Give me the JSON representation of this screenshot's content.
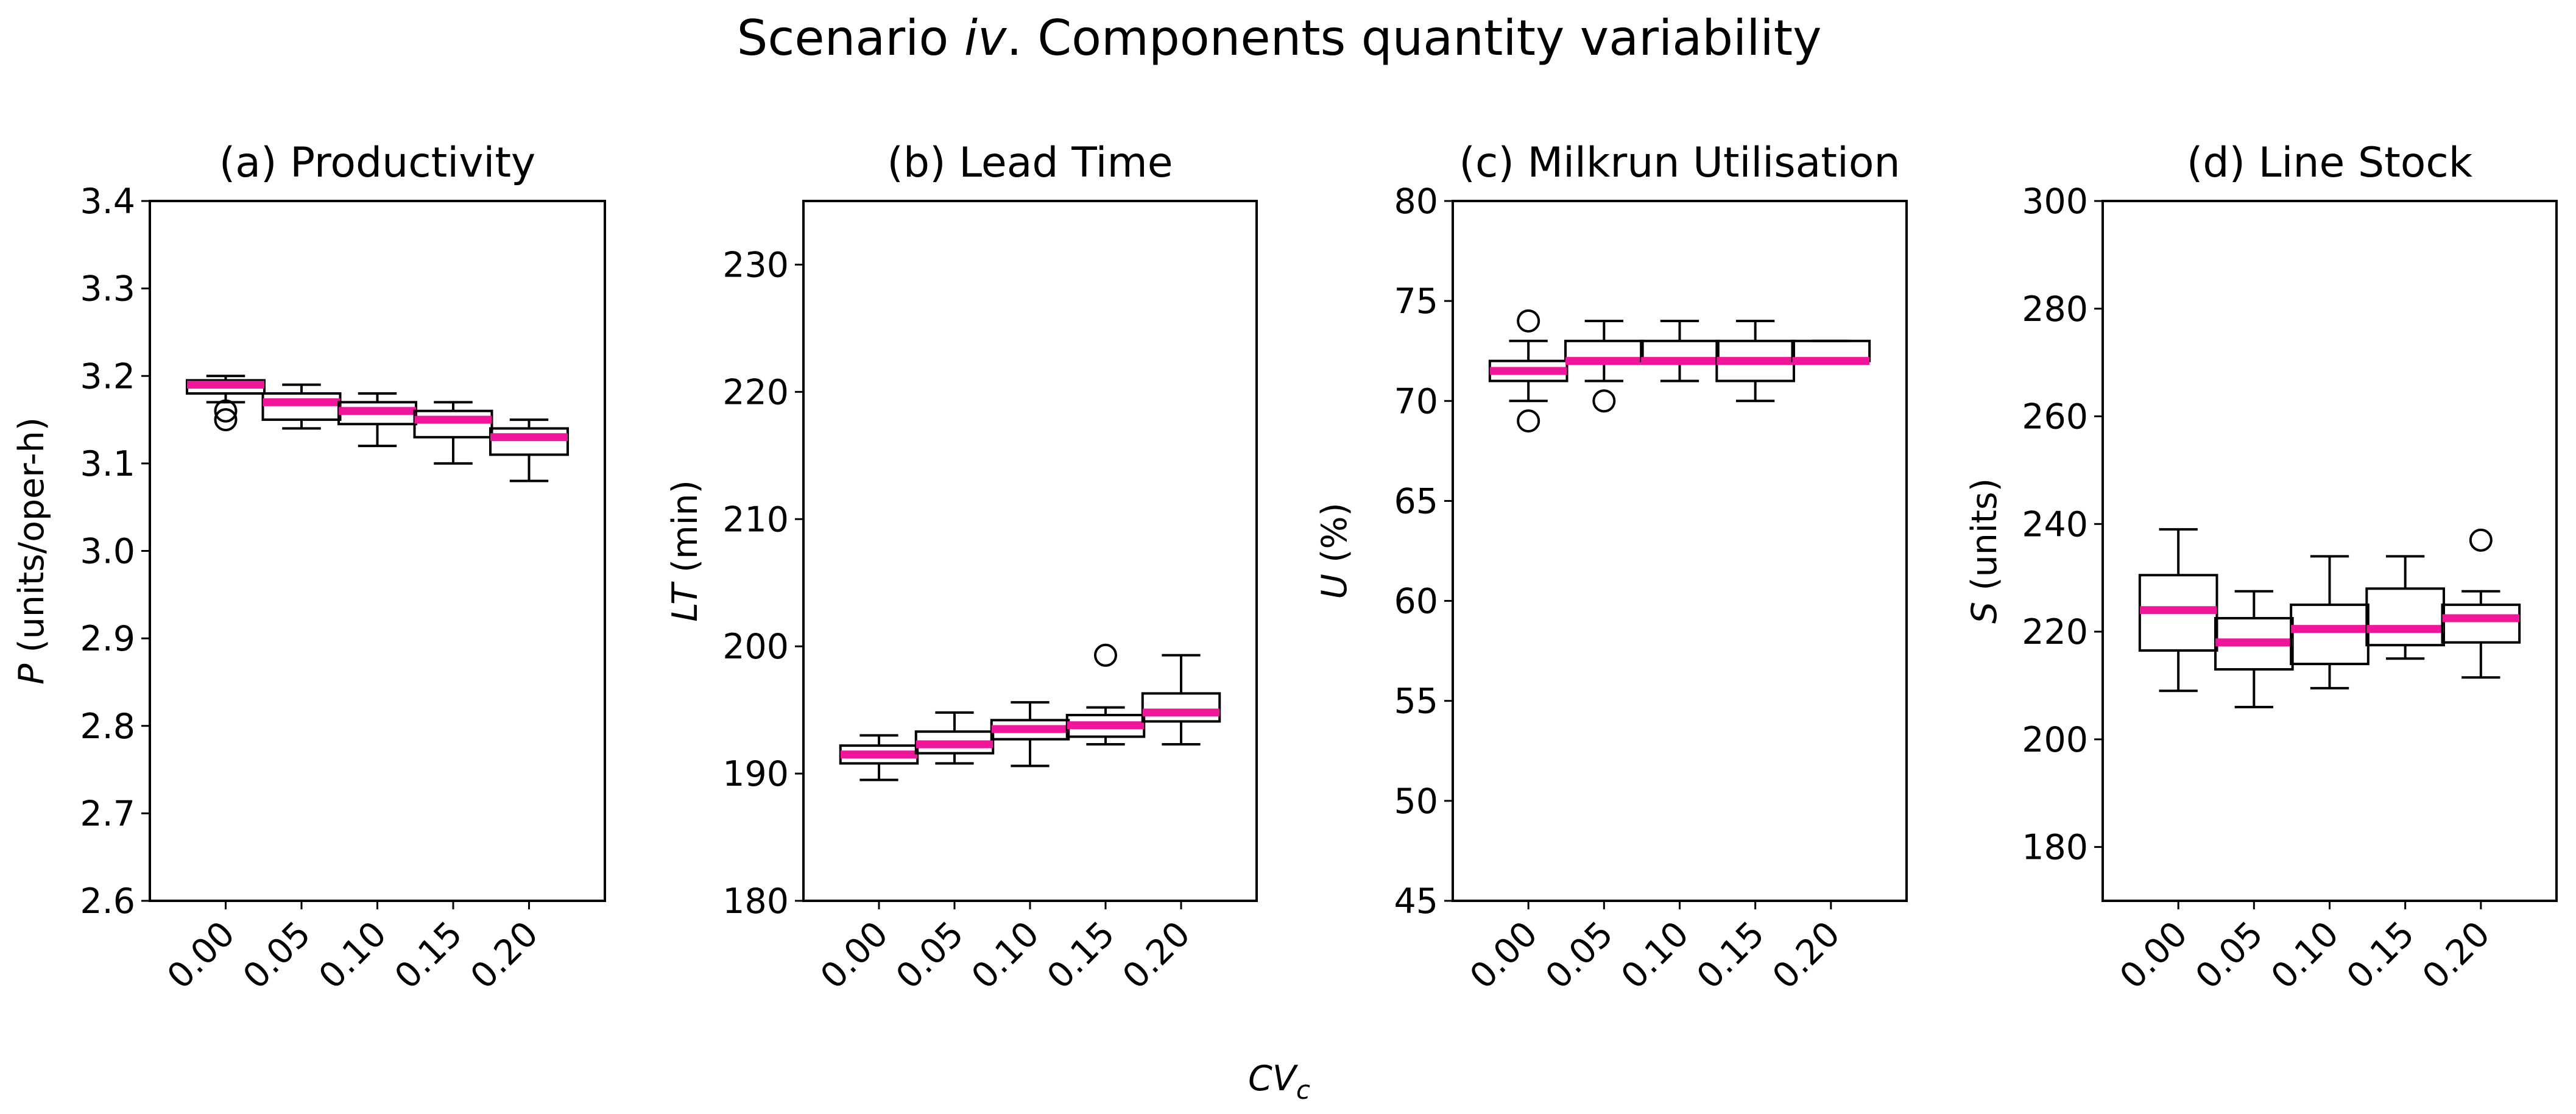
{
  "figure_title": {
    "prefix": "Scenario ",
    "italic": "iv",
    "suffix": ".  Components quantity variability"
  },
  "xlabel": {
    "main": "CV",
    "sub": "c"
  },
  "colors": {
    "median": "#f0169a",
    "box": "#000000",
    "background": "#ffffff"
  },
  "chart_data": [
    {
      "type": "boxplot",
      "title": "(a) Productivity",
      "ylabel": {
        "symbol": "P",
        "rest": " (units/oper-h)"
      },
      "categories": [
        "0.00",
        "0.05",
        "0.10",
        "0.15",
        "0.20"
      ],
      "ylim": [
        2.6,
        3.4
      ],
      "yticks": [
        2.6,
        2.7,
        2.8,
        2.9,
        3.0,
        3.1,
        3.2,
        3.3,
        3.4
      ],
      "ytick_labels": [
        "2.6",
        "2.7",
        "2.8",
        "2.9",
        "3.0",
        "3.1",
        "3.2",
        "3.3",
        "3.4"
      ],
      "boxes": [
        {
          "whislo": 3.17,
          "q1": 3.18,
          "med": 3.19,
          "q3": 3.195,
          "whishi": 3.2,
          "fliers": [
            3.15,
            3.16
          ]
        },
        {
          "whislo": 3.14,
          "q1": 3.15,
          "med": 3.17,
          "q3": 3.18,
          "whishi": 3.19,
          "fliers": []
        },
        {
          "whislo": 3.12,
          "q1": 3.145,
          "med": 3.16,
          "q3": 3.17,
          "whishi": 3.18,
          "fliers": []
        },
        {
          "whislo": 3.1,
          "q1": 3.13,
          "med": 3.15,
          "q3": 3.16,
          "whishi": 3.17,
          "fliers": []
        },
        {
          "whislo": 3.08,
          "q1": 3.11,
          "med": 3.13,
          "q3": 3.14,
          "whishi": 3.15,
          "fliers": []
        }
      ]
    },
    {
      "type": "boxplot",
      "title": "(b) Lead Time",
      "ylabel": {
        "symbol": "LT",
        "rest": " (min)"
      },
      "categories": [
        "0.00",
        "0.05",
        "0.10",
        "0.15",
        "0.20"
      ],
      "ylim": [
        180,
        235
      ],
      "yticks": [
        180,
        190,
        200,
        210,
        220,
        230
      ],
      "ytick_labels": [
        "180",
        "190",
        "200",
        "210",
        "220",
        "230"
      ],
      "boxes": [
        {
          "whislo": 189.5,
          "q1": 190.8,
          "med": 191.5,
          "q3": 192.2,
          "whishi": 193.0,
          "fliers": []
        },
        {
          "whislo": 190.8,
          "q1": 191.6,
          "med": 192.3,
          "q3": 193.3,
          "whishi": 194.8,
          "fliers": []
        },
        {
          "whislo": 190.6,
          "q1": 192.7,
          "med": 193.5,
          "q3": 194.2,
          "whishi": 195.6,
          "fliers": []
        },
        {
          "whislo": 192.3,
          "q1": 192.9,
          "med": 193.8,
          "q3": 194.6,
          "whishi": 195.2,
          "fliers": [
            199.3
          ]
        },
        {
          "whislo": 192.3,
          "q1": 194.1,
          "med": 194.8,
          "q3": 196.3,
          "whishi": 199.3,
          "fliers": []
        }
      ]
    },
    {
      "type": "boxplot",
      "title": "(c) Milkrun Utilisation",
      "ylabel": {
        "symbol": "U",
        "rest": " (%)"
      },
      "categories": [
        "0.00",
        "0.05",
        "0.10",
        "0.15",
        "0.20"
      ],
      "ylim": [
        45,
        80
      ],
      "yticks": [
        45,
        50,
        55,
        60,
        65,
        70,
        75,
        80
      ],
      "ytick_labels": [
        "45",
        "50",
        "55",
        "60",
        "65",
        "70",
        "75",
        "80"
      ],
      "boxes": [
        {
          "whislo": 70,
          "q1": 71,
          "med": 71.5,
          "q3": 72,
          "whishi": 73,
          "fliers": [
            69,
            74
          ]
        },
        {
          "whislo": 71,
          "q1": 72,
          "med": 72,
          "q3": 73,
          "whishi": 74,
          "fliers": [
            70
          ]
        },
        {
          "whislo": 71,
          "q1": 72,
          "med": 72,
          "q3": 73,
          "whishi": 74,
          "fliers": []
        },
        {
          "whislo": 70,
          "q1": 71,
          "med": 72,
          "q3": 73,
          "whishi": 74,
          "fliers": []
        },
        {
          "whislo": 72,
          "q1": 72,
          "med": 72,
          "q3": 73,
          "whishi": 73,
          "fliers": []
        }
      ]
    },
    {
      "type": "boxplot",
      "title": "(d) Line Stock",
      "ylabel": {
        "symbol": "S",
        "rest": " (units)"
      },
      "categories": [
        "0.00",
        "0.05",
        "0.10",
        "0.15",
        "0.20"
      ],
      "ylim": [
        170,
        300
      ],
      "yticks": [
        180,
        200,
        220,
        240,
        260,
        280,
        300
      ],
      "ytick_labels": [
        "180",
        "200",
        "220",
        "240",
        "260",
        "280",
        "300"
      ],
      "boxes": [
        {
          "whislo": 209,
          "q1": 216.5,
          "med": 224,
          "q3": 230.5,
          "whishi": 239,
          "fliers": []
        },
        {
          "whislo": 206,
          "q1": 213,
          "med": 218,
          "q3": 222.5,
          "whishi": 227.5,
          "fliers": []
        },
        {
          "whislo": 209.5,
          "q1": 214,
          "med": 220.5,
          "q3": 225,
          "whishi": 234,
          "fliers": []
        },
        {
          "whislo": 215,
          "q1": 217.5,
          "med": 220.5,
          "q3": 228,
          "whishi": 234,
          "fliers": []
        },
        {
          "whislo": 211.5,
          "q1": 218,
          "med": 222.5,
          "q3": 225,
          "whishi": 227.5,
          "fliers": [
            237
          ]
        }
      ]
    }
  ]
}
